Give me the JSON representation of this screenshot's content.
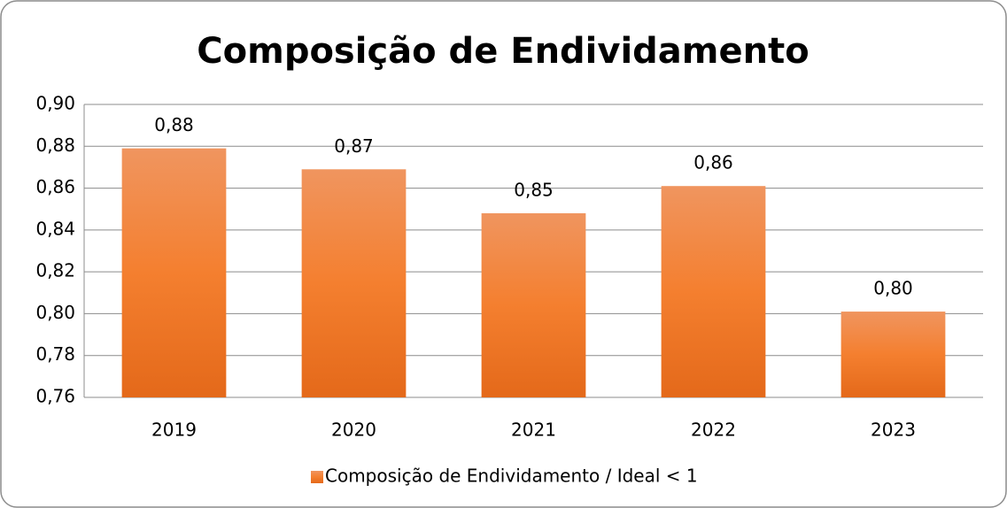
{
  "chart_data": {
    "type": "bar",
    "title": "Composição de Endividamento",
    "categories": [
      "2019",
      "2020",
      "2021",
      "2022",
      "2023"
    ],
    "series": [
      {
        "name": "Composição de Endividamento / Ideal < 1",
        "color": "#f47f2f",
        "values": [
          0.879,
          0.869,
          0.848,
          0.861,
          0.801
        ],
        "value_labels": [
          "0,88",
          "0,87",
          "0,85",
          "0,86",
          "0,80"
        ]
      }
    ],
    "ylim": [
      0.76,
      0.9
    ],
    "yticks": [
      {
        "value": 0.76,
        "label": "0,76"
      },
      {
        "value": 0.78,
        "label": "0,78"
      },
      {
        "value": 0.8,
        "label": "0,80"
      },
      {
        "value": 0.82,
        "label": "0,82"
      },
      {
        "value": 0.84,
        "label": "0,84"
      },
      {
        "value": 0.86,
        "label": "0,86"
      },
      {
        "value": 0.88,
        "label": "0,88"
      },
      {
        "value": 0.9,
        "label": "0,90"
      }
    ],
    "grid": true,
    "legend": "bottom"
  }
}
